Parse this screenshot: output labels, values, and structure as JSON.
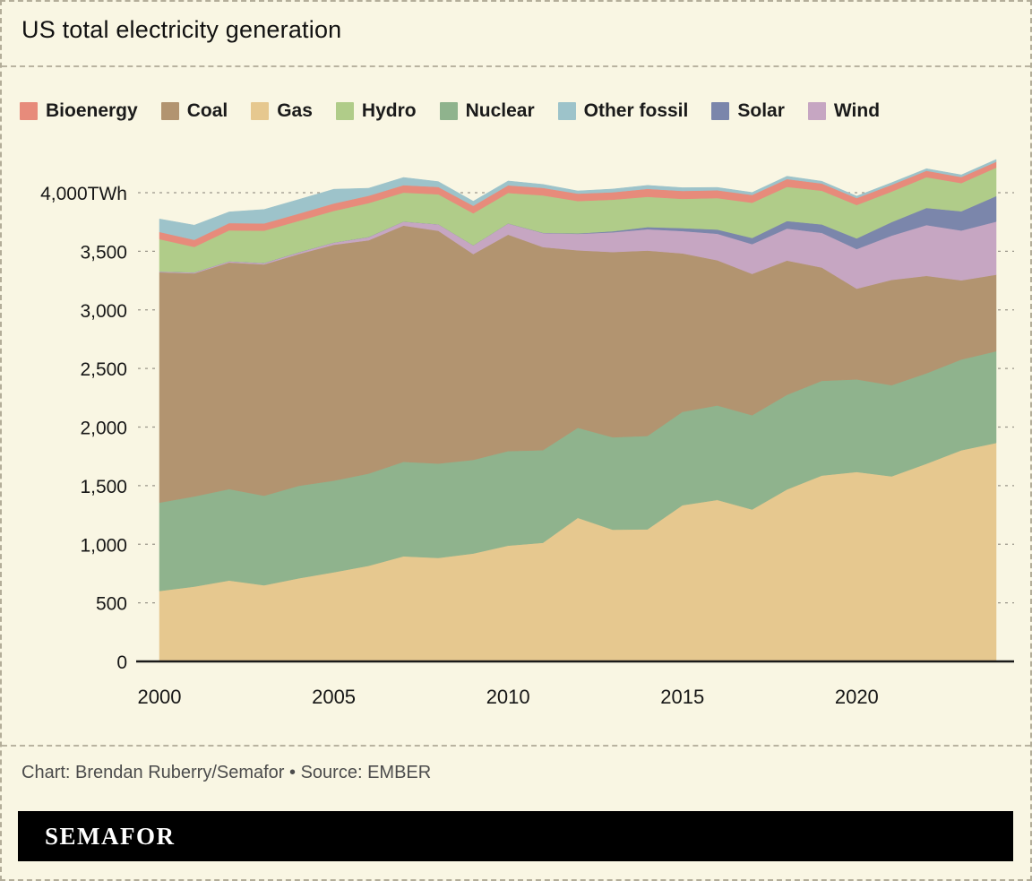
{
  "header": {
    "title": "US total electricity generation"
  },
  "footer": {
    "credit": "Chart: Brendan Ruberry/Semafor • Source: EMBER",
    "brand": "SEMAFOR"
  },
  "colors": {
    "background": "#f9f6e3",
    "axis": "#1a1a1a",
    "gridline": "#9a968a",
    "brand_bar": "#000000"
  },
  "chart_data": {
    "type": "area",
    "stacked": true,
    "unit": "TWh",
    "title": "US total electricity generation",
    "xlabel": "",
    "ylabel": "",
    "ylim": [
      0,
      4000
    ],
    "x": [
      2000,
      2001,
      2002,
      2003,
      2004,
      2005,
      2006,
      2007,
      2008,
      2009,
      2010,
      2011,
      2012,
      2013,
      2014,
      2015,
      2016,
      2017,
      2018,
      2019,
      2020,
      2021,
      2022,
      2023,
      2024
    ],
    "x_ticks": [
      2000,
      2005,
      2010,
      2015,
      2020
    ],
    "y_ticks": [
      0,
      500,
      1000,
      1500,
      2000,
      2500,
      3000,
      3500,
      4000
    ],
    "y_tick_labels": [
      "0",
      "500",
      "1,000",
      "1,500",
      "2,000",
      "2,500",
      "3,000",
      "3,500",
      "4,000TWh"
    ],
    "legend_order": [
      "Bioenergy",
      "Coal",
      "Gas",
      "Hydro",
      "Nuclear",
      "Other fossil",
      "Solar",
      "Wind"
    ],
    "legend_position": "top",
    "grid": "dashed-horizontal",
    "series": [
      {
        "name": "Gas",
        "color": "#e6c88f",
        "values": [
          601,
          639,
          691,
          650,
          710,
          761,
          816,
          897,
          883,
          921,
          988,
          1013,
          1225,
          1124,
          1127,
          1333,
          1378,
          1296,
          1468,
          1586,
          1617,
          1579,
          1687,
          1802,
          1865
        ]
      },
      {
        "name": "Nuclear",
        "color": "#8fb38d",
        "values": [
          754,
          769,
          780,
          764,
          789,
          782,
          787,
          806,
          806,
          799,
          807,
          790,
          769,
          789,
          797,
          797,
          806,
          805,
          807,
          809,
          790,
          778,
          772,
          775,
          782
        ]
      },
      {
        "name": "Coal",
        "color": "#b29470",
        "values": [
          1966,
          1904,
          1933,
          1974,
          1978,
          2013,
          1991,
          2016,
          1986,
          1756,
          1847,
          1733,
          1514,
          1581,
          1582,
          1352,
          1239,
          1206,
          1146,
          966,
          774,
          899,
          831,
          675,
          653
        ]
      },
      {
        "name": "Wind",
        "color": "#c6a6c2",
        "values": [
          6,
          7,
          10,
          11,
          14,
          18,
          27,
          34,
          55,
          74,
          95,
          120,
          141,
          168,
          182,
          191,
          227,
          254,
          273,
          296,
          338,
          378,
          434,
          425,
          453
        ]
      },
      {
        "name": "Solar",
        "color": "#7b86ab",
        "values": [
          1,
          1,
          1,
          1,
          1,
          1,
          1,
          1,
          1,
          1,
          1,
          2,
          4,
          9,
          18,
          25,
          36,
          53,
          64,
          72,
          91,
          115,
          146,
          165,
          218
        ]
      },
      {
        "name": "Hydro",
        "color": "#b0cc89",
        "values": [
          276,
          217,
          264,
          276,
          268,
          270,
          289,
          247,
          255,
          273,
          260,
          319,
          276,
          269,
          259,
          249,
          268,
          300,
          292,
          288,
          285,
          260,
          262,
          240,
          243
        ]
      },
      {
        "name": "Bioenergy",
        "color": "#e78b7b",
        "values": [
          61,
          61,
          62,
          62,
          62,
          63,
          63,
          63,
          63,
          64,
          65,
          64,
          63,
          64,
          68,
          68,
          67,
          67,
          66,
          62,
          59,
          58,
          55,
          52,
          50
        ]
      },
      {
        "name": "Other fossil",
        "color": "#9dc3ca",
        "values": [
          111,
          125,
          95,
          119,
          121,
          122,
          64,
          66,
          46,
          39,
          37,
          30,
          23,
          27,
          30,
          28,
          24,
          21,
          25,
          19,
          17,
          19,
          18,
          18,
          20
        ]
      }
    ]
  }
}
